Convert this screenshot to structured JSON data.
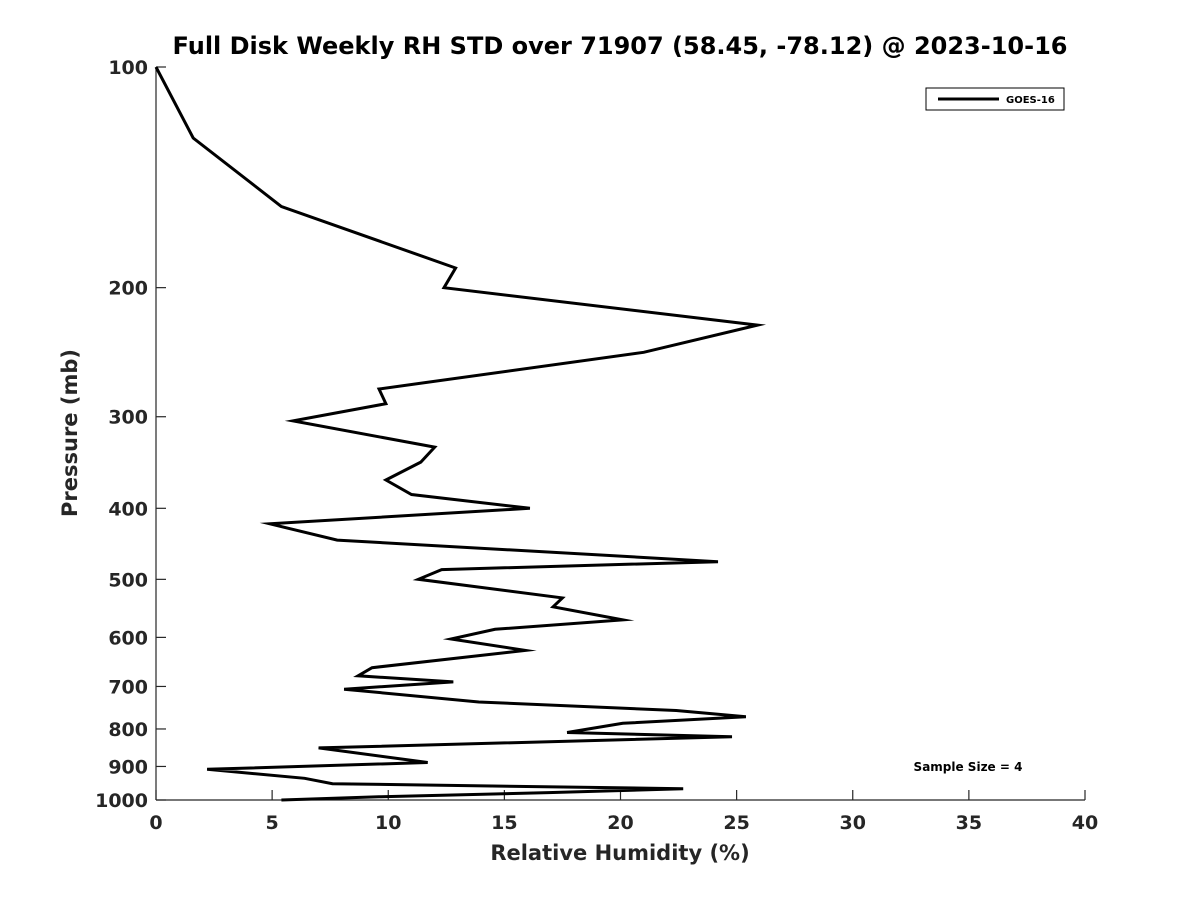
{
  "chart_data": {
    "type": "line",
    "title": "Full Disk Weekly RH STD over 71907 (58.45, -78.12) @ 2023-10-16",
    "xlabel": "Relative Humidity (%)",
    "ylabel": "Pressure (mb)",
    "xlim": [
      0,
      40
    ],
    "ylim": [
      100,
      1000
    ],
    "y_scale": "log",
    "y_reversed": true,
    "x_ticks": [
      0,
      5,
      10,
      15,
      20,
      25,
      30,
      35,
      40
    ],
    "y_ticks": [
      100,
      200,
      300,
      400,
      500,
      600,
      700,
      800,
      900,
      1000
    ],
    "grid": false,
    "legend_position": "top-right",
    "series": [
      {
        "name": "GOES-16",
        "color": "#000000",
        "points": [
          [
            0.0,
            100
          ],
          [
            1.6,
            125
          ],
          [
            5.4,
            155
          ],
          [
            12.9,
            188
          ],
          [
            12.4,
            200
          ],
          [
            25.9,
            225
          ],
          [
            21.0,
            245
          ],
          [
            9.6,
            275
          ],
          [
            9.9,
            288
          ],
          [
            5.9,
            304
          ],
          [
            12.0,
            330
          ],
          [
            11.4,
            346
          ],
          [
            9.9,
            366
          ],
          [
            11.0,
            383
          ],
          [
            16.1,
            400
          ],
          [
            4.9,
            420
          ],
          [
            7.8,
            442
          ],
          [
            24.2,
            473
          ],
          [
            12.3,
            485
          ],
          [
            11.3,
            500
          ],
          [
            17.5,
            530
          ],
          [
            17.1,
            545
          ],
          [
            20.1,
            568
          ],
          [
            14.6,
            585
          ],
          [
            12.7,
            603
          ],
          [
            15.9,
            625
          ],
          [
            9.3,
            660
          ],
          [
            8.7,
            677
          ],
          [
            12.8,
            690
          ],
          [
            8.1,
            706
          ],
          [
            13.9,
            735
          ],
          [
            22.4,
            755
          ],
          [
            25.4,
            770
          ],
          [
            20.1,
            786
          ],
          [
            17.7,
            809
          ],
          [
            24.8,
            820
          ],
          [
            7.0,
            849
          ],
          [
            11.7,
            889
          ],
          [
            2.2,
            908
          ],
          [
            6.4,
            934
          ],
          [
            7.6,
            950
          ],
          [
            22.7,
            965
          ],
          [
            16.9,
            977
          ],
          [
            9.6,
            990
          ],
          [
            5.4,
            1000
          ]
        ]
      }
    ],
    "annotations": [
      "Sample Size = 4"
    ]
  }
}
